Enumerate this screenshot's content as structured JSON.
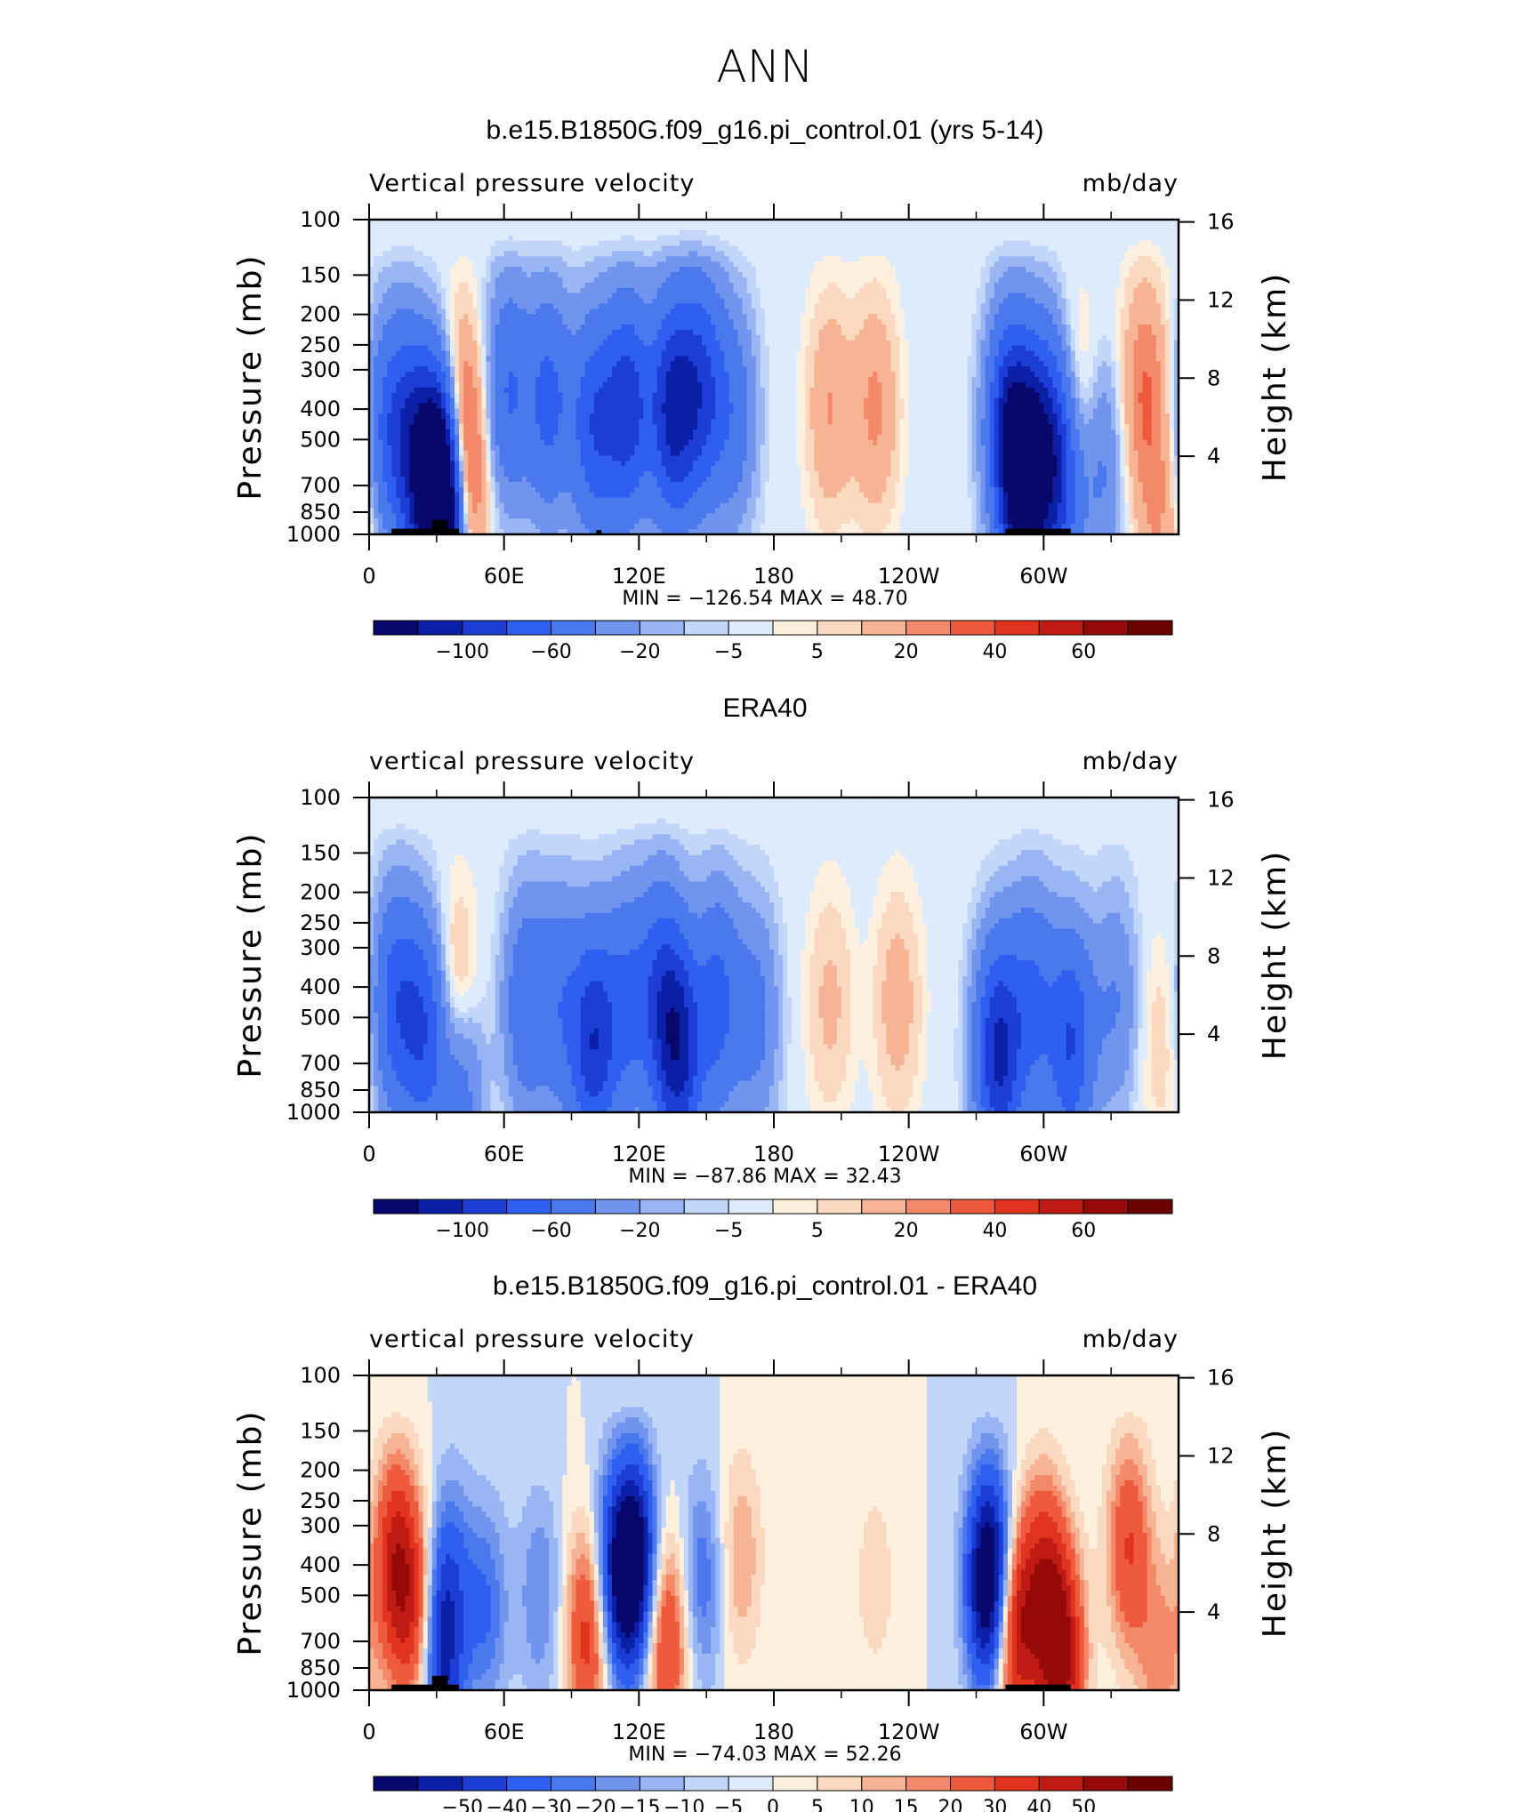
{
  "figure": {
    "title": "ANN"
  },
  "colors": {
    "land_mask": "#000000",
    "frame": "#000000"
  },
  "colorbar_main": {
    "colors": [
      "#08086c",
      "#0c1fa7",
      "#1c3ed6",
      "#2f5ff0",
      "#4a79ee",
      "#7195ee",
      "#9ab5f3",
      "#c2d6fa",
      "#ddebfc",
      "#fdf0df",
      "#fbd8c0",
      "#f7b494",
      "#f4896a",
      "#ef5a3c",
      "#e0341f",
      "#c01a14",
      "#950909",
      "#6b0202"
    ],
    "labels": [
      {
        "text": "−100",
        "at": 1
      },
      {
        "text": "−60",
        "at": 3
      },
      {
        "text": "−20",
        "at": 5
      },
      {
        "text": "−5",
        "at": 7
      },
      {
        "text": "5",
        "at": 9
      },
      {
        "text": "20",
        "at": 11
      },
      {
        "text": "40",
        "at": 13
      },
      {
        "text": "60",
        "at": 15
      }
    ]
  },
  "colorbar_diff": {
    "colors": [
      "#08086c",
      "#0c1fa7",
      "#1c3ed6",
      "#2f5ff0",
      "#4a79ee",
      "#7195ee",
      "#9ab5f3",
      "#c2d6fa",
      "#ddebfc",
      "#fdf0df",
      "#fbd8c0",
      "#f7b494",
      "#f4896a",
      "#ef5a3c",
      "#e0341f",
      "#c01a14",
      "#950909",
      "#6b0202"
    ],
    "labels": [
      {
        "text": "−50",
        "at": 1
      },
      {
        "text": "−40",
        "at": 2
      },
      {
        "text": "−30",
        "at": 3
      },
      {
        "text": "−20",
        "at": 4
      },
      {
        "text": "−15",
        "at": 5
      },
      {
        "text": "−10",
        "at": 6
      },
      {
        "text": "−5",
        "at": 7
      },
      {
        "text": "0",
        "at": 8
      },
      {
        "text": "5",
        "at": 9
      },
      {
        "text": "10",
        "at": 10
      },
      {
        "text": "15",
        "at": 11
      },
      {
        "text": "20",
        "at": 12
      },
      {
        "text": "30",
        "at": 13
      },
      {
        "text": "40",
        "at": 14
      },
      {
        "text": "50",
        "at": 15
      }
    ]
  },
  "chart_data": [
    {
      "type": "heatmap",
      "title": "b.e15.B1850G.f09_g16.pi_control.01 (yrs 5-14)",
      "left_string": "Vertical pressure velocity",
      "right_string": "mb/day",
      "ylabel": "Pressure (mb)",
      "ylabel_right": "Height (km)",
      "x_ticks": [
        "0",
        "60E",
        "120E",
        "180",
        "120W",
        "60W"
      ],
      "xlim": [
        0,
        360
      ],
      "y_ticks": [
        "100",
        "150",
        "200",
        "250",
        "300",
        "400",
        "500",
        "700",
        "850",
        "1000"
      ],
      "y_ticks_right": [
        "16",
        "12",
        "8",
        "4"
      ],
      "ylim": [
        1000,
        100
      ],
      "y_scale": "log",
      "stats_text": "MIN = −126.54   MAX =   48.70",
      "min": -126.54,
      "max": 48.7,
      "colorbar": "main",
      "features": [
        {
          "lon": 8,
          "p": 450,
          "v": -35
        },
        {
          "lon": 18,
          "p": 500,
          "v": -60
        },
        {
          "lon": 30,
          "p": 650,
          "v": -110
        },
        {
          "lon": 33,
          "p": 900,
          "v": -126
        },
        {
          "lon": 40,
          "p": 450,
          "v": 35
        },
        {
          "lon": 41,
          "p": 750,
          "v": 48
        },
        {
          "lon": 62,
          "p": 350,
          "v": -40
        },
        {
          "lon": 80,
          "p": 380,
          "v": -45
        },
        {
          "lon": 100,
          "p": 450,
          "v": -55
        },
        {
          "lon": 115,
          "p": 400,
          "v": -70
        },
        {
          "lon": 135,
          "p": 400,
          "v": -85
        },
        {
          "lon": 148,
          "p": 350,
          "v": -60
        },
        {
          "lon": 162,
          "p": 420,
          "v": -30
        },
        {
          "lon": 205,
          "p": 400,
          "v": 20
        },
        {
          "lon": 225,
          "p": 400,
          "v": 22
        },
        {
          "lon": 285,
          "p": 450,
          "v": -80
        },
        {
          "lon": 292,
          "p": 750,
          "v": -110
        },
        {
          "lon": 300,
          "p": 450,
          "v": -45
        },
        {
          "lon": 308,
          "p": 650,
          "v": -65
        },
        {
          "lon": 315,
          "p": 450,
          "v": 25
        },
        {
          "lon": 325,
          "p": 600,
          "v": -25
        },
        {
          "lon": 345,
          "p": 350,
          "v": 30
        },
        {
          "lon": 352,
          "p": 900,
          "v": 18
        }
      ]
    },
    {
      "type": "heatmap",
      "title": "ERA40",
      "left_string": "vertical pressure velocity",
      "right_string": "mb/day",
      "ylabel": "Pressure (mb)",
      "ylabel_right": "Height (km)",
      "x_ticks": [
        "0",
        "60E",
        "120E",
        "180",
        "120W",
        "60W"
      ],
      "xlim": [
        0,
        360
      ],
      "y_ticks": [
        "100",
        "150",
        "200",
        "250",
        "300",
        "400",
        "500",
        "700",
        "850",
        "1000"
      ],
      "y_ticks_right": [
        "16",
        "12",
        "8",
        "4"
      ],
      "ylim": [
        1000,
        100
      ],
      "y_scale": "log",
      "stats_text": "MIN = −87.86   MAX =   32.43",
      "min": -87.86,
      "max": 32.43,
      "colorbar": "main",
      "features": [
        {
          "lon": 12,
          "p": 450,
          "v": -50
        },
        {
          "lon": 25,
          "p": 550,
          "v": -55
        },
        {
          "lon": 38,
          "p": 500,
          "v": 30
        },
        {
          "lon": 40,
          "p": 800,
          "v": -40
        },
        {
          "lon": 70,
          "p": 450,
          "v": -35
        },
        {
          "lon": 85,
          "p": 450,
          "v": -30
        },
        {
          "lon": 100,
          "p": 600,
          "v": -75
        },
        {
          "lon": 115,
          "p": 450,
          "v": -40
        },
        {
          "lon": 130,
          "p": 420,
          "v": -50
        },
        {
          "lon": 138,
          "p": 650,
          "v": -80
        },
        {
          "lon": 155,
          "p": 450,
          "v": -45
        },
        {
          "lon": 172,
          "p": 500,
          "v": -25
        },
        {
          "lon": 205,
          "p": 450,
          "v": 12
        },
        {
          "lon": 235,
          "p": 450,
          "v": 15
        },
        {
          "lon": 280,
          "p": 650,
          "v": -85
        },
        {
          "lon": 295,
          "p": 450,
          "v": -40
        },
        {
          "lon": 312,
          "p": 600,
          "v": -60
        },
        {
          "lon": 332,
          "p": 450,
          "v": -20
        },
        {
          "lon": 352,
          "p": 600,
          "v": 8
        }
      ]
    },
    {
      "type": "heatmap",
      "title": "b.e15.B1850G.f09_g16.pi_control.01 - ERA40",
      "left_string": "vertical pressure velocity",
      "right_string": "mb/day",
      "ylabel": "Pressure (mb)",
      "ylabel_right": "Height (km)",
      "x_ticks": [
        "0",
        "60E",
        "120E",
        "180",
        "120W",
        "60W"
      ],
      "xlim": [
        0,
        360
      ],
      "y_ticks": [
        "100",
        "150",
        "200",
        "250",
        "300",
        "400",
        "500",
        "700",
        "850",
        "1000"
      ],
      "y_ticks_right": [
        "16",
        "12",
        "8",
        "4"
      ],
      "ylim": [
        1000,
        100
      ],
      "y_scale": "log",
      "stats_text": "MIN = −74.03   MAX =   52.26",
      "min": -74.03,
      "max": 52.26,
      "colorbar": "diff",
      "features": [
        {
          "lon": 12,
          "p": 400,
          "v": 45
        },
        {
          "lon": 22,
          "p": 600,
          "v": 30
        },
        {
          "lon": 32,
          "p": 750,
          "v": -45
        },
        {
          "lon": 36,
          "p": 400,
          "v": -15
        },
        {
          "lon": 52,
          "p": 550,
          "v": -20
        },
        {
          "lon": 76,
          "p": 500,
          "v": -15
        },
        {
          "lon": 98,
          "p": 650,
          "v": 40
        },
        {
          "lon": 108,
          "p": 450,
          "v": -35
        },
        {
          "lon": 118,
          "p": 400,
          "v": -65
        },
        {
          "lon": 132,
          "p": 700,
          "v": 35
        },
        {
          "lon": 148,
          "p": 450,
          "v": -20
        },
        {
          "lon": 165,
          "p": 380,
          "v": 15
        },
        {
          "lon": 225,
          "p": 450,
          "v": 8
        },
        {
          "lon": 276,
          "p": 450,
          "v": -74
        },
        {
          "lon": 287,
          "p": 650,
          "v": 50
        },
        {
          "lon": 300,
          "p": 450,
          "v": 35
        },
        {
          "lon": 308,
          "p": 800,
          "v": 52
        },
        {
          "lon": 338,
          "p": 350,
          "v": 30
        },
        {
          "lon": 352,
          "p": 850,
          "v": 18
        }
      ]
    }
  ]
}
